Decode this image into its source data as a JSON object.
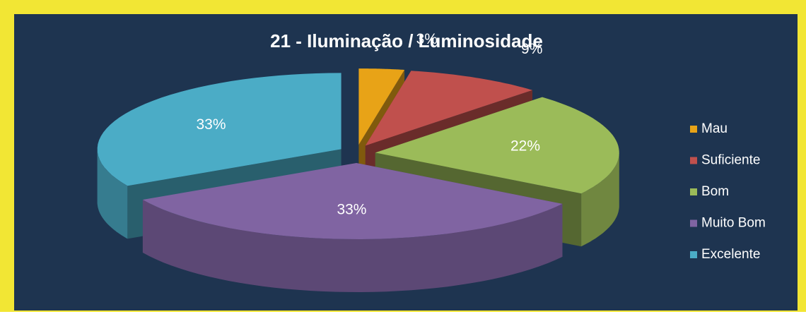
{
  "chart_data": {
    "type": "pie",
    "title": "21 - Iluminação / Luminosidade",
    "categories": [
      "Mau",
      "Suficiente",
      "Bom",
      "Muito Bom",
      "Excelente"
    ],
    "values": [
      3,
      9,
      22,
      33,
      33
    ],
    "value_labels": [
      "3%",
      "9%",
      "22%",
      "33%",
      "33%"
    ],
    "colors": [
      "#e8a317",
      "#c0504d",
      "#9bbb59",
      "#8064a2",
      "#4bacc6"
    ],
    "legend": "right"
  }
}
